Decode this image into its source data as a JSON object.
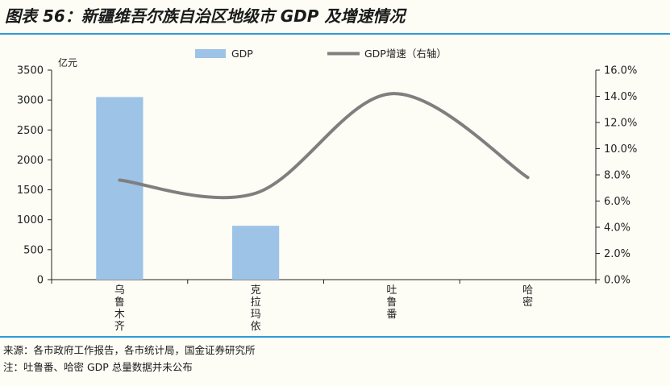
{
  "title": "图表 56：新疆维吾尔族自治区地级市 GDP 及增速情况",
  "chart_data": {
    "type": "bar",
    "categories": [
      "乌鲁木齐",
      "克拉玛依",
      "吐鲁番",
      "哈密"
    ],
    "series": [
      {
        "name": "GDP",
        "type": "bar",
        "axis": "left",
        "values": [
          3050,
          900,
          null,
          null
        ],
        "color": "#9dc3e6"
      },
      {
        "name": "GDP增速（右轴）",
        "type": "line",
        "axis": "right",
        "smooth": true,
        "values": [
          7.6,
          6.6,
          14.2,
          7.8
        ],
        "color": "#7f7f7f"
      }
    ],
    "yunit": "亿元",
    "ylim": [
      0,
      3500
    ],
    "yticks": [
      "0",
      "500",
      "1000",
      "1500",
      "2000",
      "2500",
      "3000",
      "3500"
    ],
    "y2lim": [
      0,
      16
    ],
    "y2ticks": [
      "0.0%",
      "2.0%",
      "4.0%",
      "6.0%",
      "8.0%",
      "10.0%",
      "12.0%",
      "14.0%",
      "16.0%"
    ],
    "legend_position": "top",
    "grid": false
  },
  "source": {
    "line1": "来源：各市政府工作报告，各市统计局，国金证券研究所",
    "line2": "注：吐鲁番、哈密 GDP 总量数据并未公布"
  }
}
